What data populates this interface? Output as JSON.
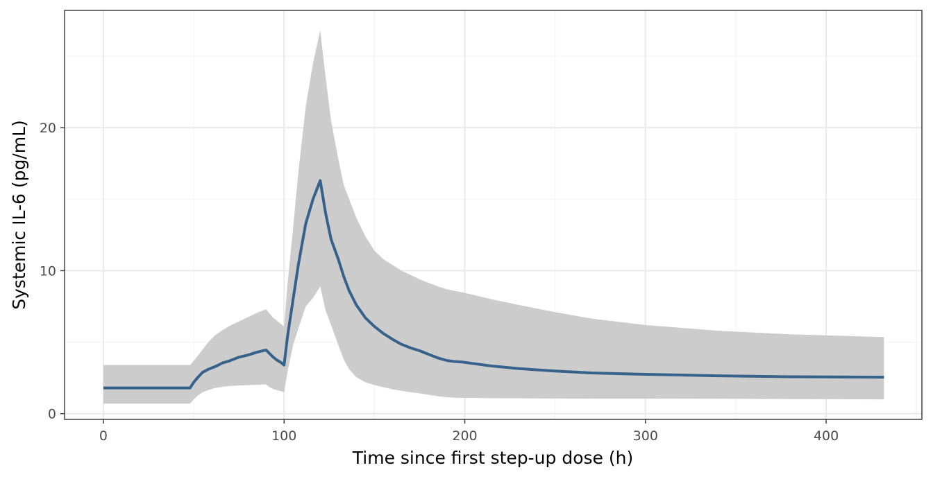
{
  "chart_data": {
    "type": "line",
    "title": "",
    "xlabel": "Time since first step-up dose (h)",
    "ylabel": "Systemic IL-6 (pg/mL)",
    "xlim": [
      -21.5,
      453
    ],
    "ylim": [
      -0.4,
      28.2
    ],
    "x_ticks": [
      0,
      100,
      200,
      300,
      400
    ],
    "y_ticks": [
      0,
      10,
      20
    ],
    "x_tick_labels": [
      "0",
      "100",
      "200",
      "300",
      "400"
    ],
    "y_tick_labels": [
      "0",
      "10",
      "20"
    ],
    "grid": true,
    "legend": "none",
    "colors": {
      "line": "#36618a",
      "ribbon": "#cccccc",
      "grid_major": "#ebebeb",
      "grid_minor": "#f4f4f4",
      "panel_border": "#333333"
    },
    "series": [
      {
        "x": [
          0,
          48,
          50,
          52,
          55,
          58,
          62,
          66,
          70,
          75,
          80,
          85,
          90,
          92,
          94,
          96,
          98,
          100,
          102,
          105,
          108,
          112,
          116,
          120,
          123,
          126,
          130,
          133,
          136,
          140,
          145,
          150,
          155,
          160,
          165,
          170,
          175,
          180,
          185,
          190,
          194,
          198,
          205,
          215,
          230,
          250,
          270,
          300,
          340,
          380,
          432
        ],
        "y": [
          1.8,
          1.8,
          2.2,
          2.5,
          2.9,
          3.1,
          3.3,
          3.55,
          3.7,
          3.95,
          4.1,
          4.3,
          4.45,
          4.2,
          3.95,
          3.75,
          3.6,
          3.4,
          5.5,
          8.0,
          10.5,
          13.3,
          15.0,
          16.3,
          14.0,
          12.2,
          10.8,
          9.6,
          8.6,
          7.6,
          6.7,
          6.1,
          5.6,
          5.2,
          4.85,
          4.6,
          4.4,
          4.15,
          3.9,
          3.72,
          3.65,
          3.62,
          3.5,
          3.33,
          3.15,
          2.98,
          2.85,
          2.75,
          2.65,
          2.58,
          2.55
        ],
        "lower": [
          0.7,
          0.7,
          1.0,
          1.25,
          1.5,
          1.65,
          1.8,
          1.88,
          1.93,
          1.97,
          2.0,
          2.02,
          2.05,
          1.85,
          1.72,
          1.65,
          1.58,
          1.5,
          3.0,
          4.8,
          6.0,
          7.5,
          8.1,
          8.9,
          7.2,
          6.2,
          4.8,
          3.8,
          3.1,
          2.55,
          2.2,
          2.0,
          1.85,
          1.7,
          1.6,
          1.5,
          1.42,
          1.32,
          1.22,
          1.15,
          1.12,
          1.1,
          1.1,
          1.08,
          1.07,
          1.06,
          1.05,
          1.05,
          1.04,
          1.02,
          1.0
        ],
        "upper": [
          3.4,
          3.4,
          3.7,
          4.0,
          4.5,
          5.0,
          5.5,
          5.85,
          6.15,
          6.45,
          6.75,
          7.05,
          7.3,
          7.0,
          6.7,
          6.5,
          6.3,
          6.1,
          9.2,
          13.0,
          17.0,
          21.5,
          24.5,
          26.8,
          23.5,
          20.5,
          17.8,
          16.0,
          15.0,
          13.7,
          12.4,
          11.4,
          10.8,
          10.4,
          10.0,
          9.7,
          9.4,
          9.15,
          8.9,
          8.7,
          8.6,
          8.5,
          8.3,
          8.0,
          7.6,
          7.1,
          6.65,
          6.2,
          5.8,
          5.55,
          5.35
        ]
      }
    ]
  }
}
